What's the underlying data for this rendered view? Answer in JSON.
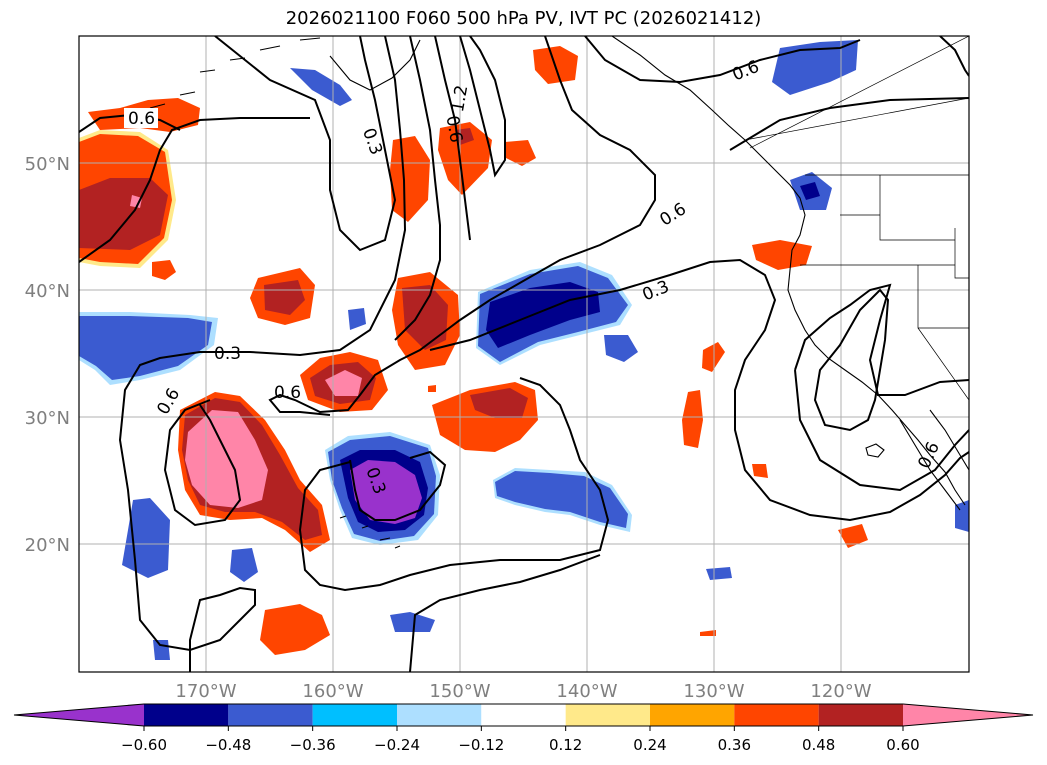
{
  "title": "2026021100 F060 500 hPa PV, IVT PC (2026021412)",
  "lat_labels": [
    "50°N",
    "40°N",
    "30°N",
    "20°N"
  ],
  "lon_labels": [
    "170°W",
    "160°W",
    "150°W",
    "140°W",
    "130°W",
    "120°W"
  ],
  "contour_labels": [
    "0.6",
    "0.3",
    "0.6",
    "1.2",
    "0.6",
    "0.6",
    "0.3",
    "0.3",
    "0.6",
    "0.6",
    "0.3",
    "0.6"
  ],
  "colorbar": {
    "ticks": [
      "−0.60",
      "−0.48",
      "−0.36",
      "−0.24",
      "−0.12",
      "0.12",
      "0.24",
      "0.36",
      "0.48",
      "0.60"
    ],
    "colors": [
      "#9932CC",
      "#00008B",
      "#3B5BD0",
      "#00BFFF",
      "#ADDFFF",
      "#FFFFFF",
      "#FFE98A",
      "#FFA500",
      "#FF4500",
      "#B22222",
      "#FF85A8"
    ]
  }
}
